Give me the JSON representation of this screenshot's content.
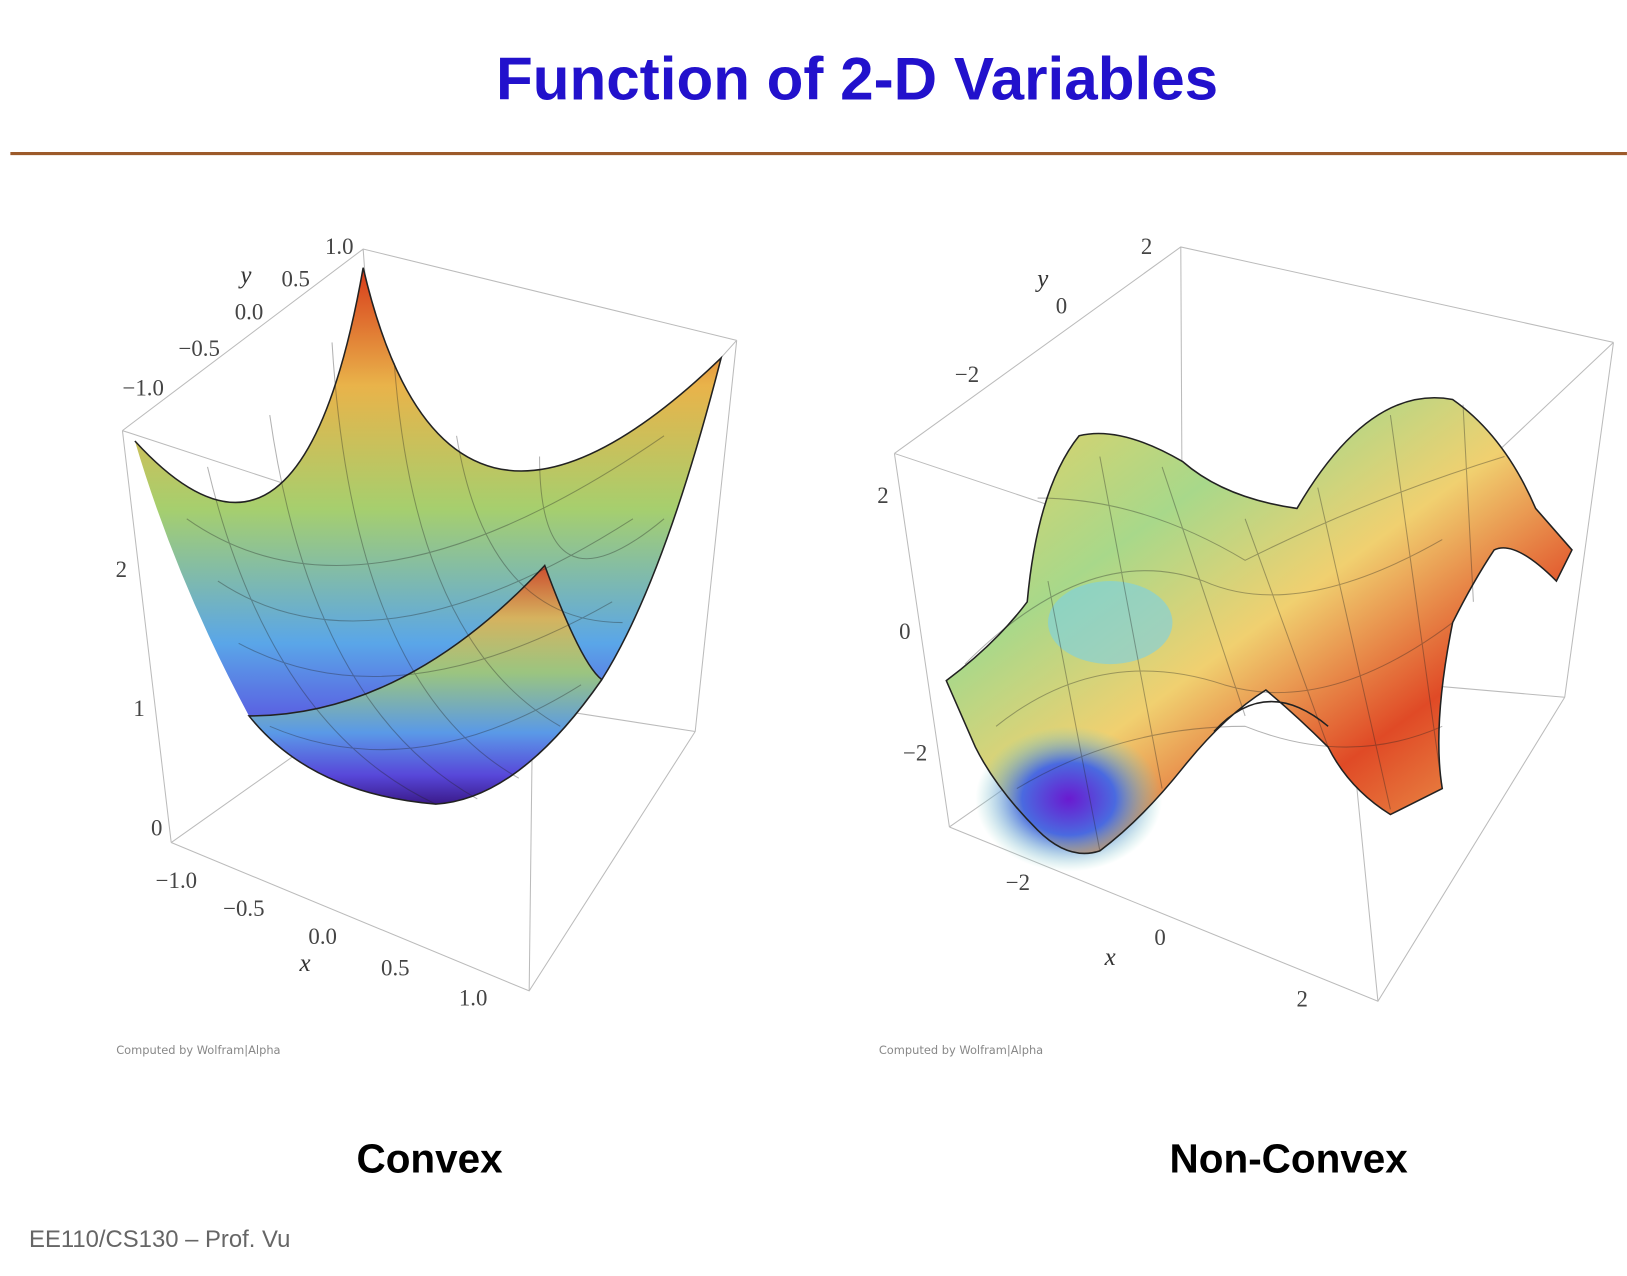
{
  "header": {
    "title": "Function of 2-D Variables"
  },
  "plots": [
    {
      "caption": "Convex",
      "credit": "Computed by Wolfram|Alpha",
      "axis_labels": {
        "x": "x",
        "y": "y"
      },
      "y_ticks": [
        "1.0",
        "0.5",
        "0.0",
        "−0.5",
        "−1.0"
      ],
      "z_ticks": [
        "2",
        "1",
        "0"
      ],
      "x_ticks": [
        "−1.0",
        "−0.5",
        "0.0",
        "0.5",
        "1.0"
      ]
    },
    {
      "caption": "Non-Convex",
      "credit": "Computed by Wolfram|Alpha",
      "axis_labels": {
        "x": "x",
        "y": "y"
      },
      "y_ticks": [
        "2",
        "0",
        "−2"
      ],
      "z_ticks": [
        "2",
        "0",
        "−2"
      ],
      "x_ticks": [
        "−2",
        "0",
        "2"
      ]
    }
  ],
  "footer": {
    "text": "EE110/CS130 – Prof. Vu"
  }
}
